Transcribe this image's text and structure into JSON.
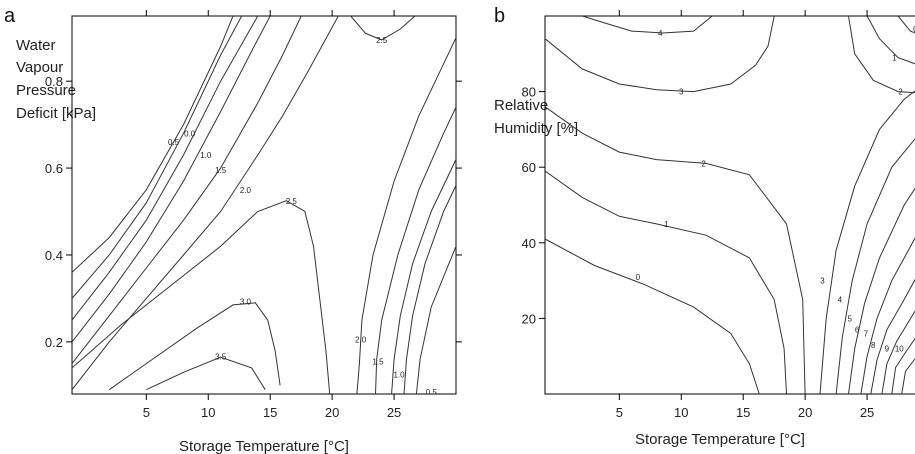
{
  "chart_data": [
    {
      "type": "contour",
      "panel": "a",
      "xlabel": "Storage Temperature [°C]",
      "ylabel_lines": [
        "Water",
        "Vapour",
        "Pressure",
        "Deficit [kPa]"
      ],
      "xlim": [
        -1,
        30
      ],
      "ylim": [
        0.08,
        0.95
      ],
      "xticks": [
        5,
        10,
        15,
        20,
        25
      ],
      "yticks": [
        0.2,
        0.4,
        0.6,
        0.8
      ],
      "ytick_labels": [
        "0.2",
        "0.4",
        "0.6",
        "0.8"
      ],
      "contours": [
        {
          "level": "0.5",
          "points": [
            [
              -1,
              0.36
            ],
            [
              2,
              0.44
            ],
            [
              5,
              0.55
            ],
            [
              8,
              0.7
            ],
            [
              11,
              0.88
            ],
            [
              12,
              0.95
            ]
          ],
          "label_at": [
            7.2,
            0.66
          ]
        },
        {
          "level": "0.0",
          "points": [
            [
              -1,
              0.3
            ],
            [
              2,
              0.4
            ],
            [
              5,
              0.52
            ],
            [
              8,
              0.68
            ],
            [
              11,
              0.86
            ],
            [
              12.7,
              0.95
            ]
          ],
          "label_at": [
            8.5,
            0.68
          ]
        },
        {
          "level": "1.0",
          "points": [
            [
              -1,
              0.25
            ],
            [
              2,
              0.36
            ],
            [
              5,
              0.48
            ],
            [
              8,
              0.63
            ],
            [
              11,
              0.8
            ],
            [
              14,
              0.95
            ]
          ],
          "label_at": [
            9.8,
            0.63
          ]
        },
        {
          "level": "1.5",
          "points": [
            [
              -1,
              0.2
            ],
            [
              2,
              0.31
            ],
            [
              5,
              0.43
            ],
            [
              8,
              0.57
            ],
            [
              11,
              0.73
            ],
            [
              13.7,
              0.88
            ],
            [
              15,
              0.95
            ]
          ],
          "label_at": [
            11,
            0.595
          ]
        },
        {
          "level": "2.0",
          "points": [
            [
              -1,
              0.15
            ],
            [
              2,
              0.26
            ],
            [
              5,
              0.37
            ],
            [
              8,
              0.48
            ],
            [
              11,
              0.6
            ],
            [
              14,
              0.75
            ],
            [
              16,
              0.86
            ],
            [
              17.5,
              0.95
            ]
          ],
          "label_at": [
            13,
            0.55
          ]
        },
        {
          "level": "",
          "points": [
            [
              -1,
              0.09
            ],
            [
              2,
              0.2
            ],
            [
              5,
              0.3
            ],
            [
              8,
              0.4
            ],
            [
              11,
              0.5
            ],
            [
              14,
              0.63
            ],
            [
              16,
              0.72
            ],
            [
              18,
              0.82
            ],
            [
              20.5,
              0.95
            ]
          ]
        },
        {
          "level": "2.5",
          "points": [
            [
              -1,
              0.14
            ],
            [
              3,
              0.24
            ],
            [
              7,
              0.33
            ],
            [
              11,
              0.42
            ],
            [
              14,
              0.5
            ],
            [
              16.3,
              0.525
            ],
            [
              17.8,
              0.5
            ],
            [
              18.5,
              0.42
            ],
            [
              19,
              0.3
            ],
            [
              19.5,
              0.18
            ],
            [
              19.8,
              0.08
            ]
          ],
          "label_at": [
            16.7,
            0.524
          ]
        },
        {
          "level": "3.0",
          "points": [
            [
              2,
              0.09
            ],
            [
              5,
              0.15
            ],
            [
              9,
              0.23
            ],
            [
              12,
              0.285
            ],
            [
              13.8,
              0.29
            ],
            [
              14.8,
              0.25
            ],
            [
              15.4,
              0.18
            ],
            [
              15.8,
              0.1
            ]
          ],
          "label_at": [
            13,
            0.293
          ]
        },
        {
          "level": "3.5",
          "points": [
            [
              5,
              0.09
            ],
            [
              8,
              0.13
            ],
            [
              11,
              0.165
            ],
            [
              13.5,
              0.14
            ],
            [
              14.6,
              0.09
            ]
          ],
          "label_at": [
            11,
            0.166
          ]
        },
        {
          "level": "2.5",
          "points": [
            [
              21.5,
              0.95
            ],
            [
              22.7,
              0.91
            ],
            [
              24,
              0.895
            ],
            [
              25.5,
              0.92
            ],
            [
              26.7,
              0.95
            ]
          ],
          "label_at": [
            24,
            0.895
          ]
        },
        {
          "level": "2.0",
          "points": [
            [
              22,
              0.08
            ],
            [
              22.2,
              0.15
            ],
            [
              22.4,
              0.25
            ],
            [
              23.3,
              0.4
            ],
            [
              25,
              0.57
            ],
            [
              27,
              0.72
            ],
            [
              29,
              0.84
            ],
            [
              30,
              0.9
            ]
          ],
          "label_at": [
            22.3,
            0.205
          ]
        },
        {
          "level": "1.5",
          "points": [
            [
              23.5,
              0.08
            ],
            [
              23.6,
              0.16
            ],
            [
              24,
              0.25
            ],
            [
              25.3,
              0.4
            ],
            [
              27,
              0.55
            ],
            [
              29,
              0.68
            ],
            [
              30,
              0.74
            ]
          ],
          "label_at": [
            23.7,
            0.155
          ]
        },
        {
          "level": "1.0",
          "points": [
            [
              24.8,
              0.08
            ],
            [
              25,
              0.16
            ],
            [
              25.5,
              0.26
            ],
            [
              26.5,
              0.38
            ],
            [
              28,
              0.5
            ],
            [
              30,
              0.62
            ]
          ],
          "label_at": [
            25.4,
            0.125
          ]
        },
        {
          "level": "0.5",
          "points": [
            [
              26.8,
              0.08
            ],
            [
              27.1,
              0.16
            ],
            [
              28,
              0.28
            ],
            [
              30,
              0.42
            ]
          ],
          "label_at": [
            28,
            0.085
          ]
        },
        {
          "level": "0.0",
          "points": [
            [
              25.8,
              0.08
            ],
            [
              26,
              0.16
            ],
            [
              26.5,
              0.26
            ],
            [
              27.5,
              0.38
            ],
            [
              29,
              0.5
            ],
            [
              30,
              0.56
            ]
          ],
          "label_at": [
            26.8,
            0.065
          ]
        }
      ]
    },
    {
      "type": "contour",
      "panel": "b",
      "xlabel": "Storage Temperature [°C]",
      "ylabel_lines": [
        "Relative",
        "Humidity [%]"
      ],
      "xlim": [
        -1,
        30
      ],
      "ylim": [
        0,
        100
      ],
      "xticks": [
        5,
        10,
        15,
        20,
        25
      ],
      "yticks": [
        20,
        40,
        60,
        80
      ],
      "ytick_labels": [
        "20",
        "40",
        "60",
        "80"
      ],
      "contours": [
        {
          "level": "0",
          "points": [
            [
              -1,
              41
            ],
            [
              3,
              34
            ],
            [
              7,
              29
            ],
            [
              11,
              23
            ],
            [
              14,
              16
            ],
            [
              15.5,
              8
            ],
            [
              16.3,
              0
            ]
          ],
          "label_at": [
            6.5,
            31
          ]
        },
        {
          "level": "1",
          "points": [
            [
              -1,
              59
            ],
            [
              2,
              52
            ],
            [
              5,
              47
            ],
            [
              8,
              45
            ],
            [
              12,
              42
            ],
            [
              15.5,
              36
            ],
            [
              17.5,
              25
            ],
            [
              18.3,
              12
            ],
            [
              18.5,
              0
            ]
          ],
          "label_at": [
            8.8,
            45
          ]
        },
        {
          "level": "2",
          "points": [
            [
              -1,
              76
            ],
            [
              2,
              69
            ],
            [
              5,
              64
            ],
            [
              8,
              62
            ],
            [
              12,
              61
            ],
            [
              15.5,
              58
            ],
            [
              18.5,
              45
            ],
            [
              19.8,
              25
            ],
            [
              20,
              0
            ]
          ],
          "label_at": [
            11.8,
            61
          ]
        },
        {
          "level": "3",
          "points": [
            [
              -1,
              94
            ],
            [
              2,
              86
            ],
            [
              5,
              82
            ],
            [
              8,
              80.5
            ],
            [
              11,
              80
            ],
            [
              14,
              82
            ],
            [
              16,
              87
            ],
            [
              17,
              92
            ],
            [
              17.5,
              100
            ]
          ],
          "label_at": [
            10,
            80
          ]
        },
        {
          "level": "4",
          "points": [
            [
              2,
              100
            ],
            [
              4,
              98
            ],
            [
              6,
              96
            ],
            [
              8.5,
              95.5
            ],
            [
              11,
              96
            ],
            [
              12.5,
              100
            ]
          ],
          "label_at": [
            8.3,
            95.5
          ]
        },
        {
          "level": "3",
          "points": [
            [
              21.2,
              0
            ],
            [
              21.7,
              20
            ],
            [
              22.5,
              38
            ],
            [
              24,
              55
            ],
            [
              26,
              70
            ],
            [
              28,
              78
            ],
            [
              30,
              83
            ]
          ],
          "label_at": [
            21.4,
            30
          ]
        },
        {
          "level": "4",
          "points": [
            [
              22.5,
              0
            ],
            [
              23,
              15
            ],
            [
              23.8,
              30
            ],
            [
              25,
              45
            ],
            [
              27,
              60
            ],
            [
              30,
              72
            ]
          ],
          "label_at": [
            22.8,
            25
          ]
        },
        {
          "level": "5",
          "points": [
            [
              23.5,
              0
            ],
            [
              24,
              12
            ],
            [
              24.8,
              24
            ],
            [
              26,
              36
            ],
            [
              28,
              50
            ],
            [
              30,
              60
            ]
          ],
          "label_at": [
            23.6,
            20
          ]
        },
        {
          "level": "6",
          "points": [
            [
              24.5,
              0
            ],
            [
              25,
              10
            ],
            [
              25.8,
              20
            ],
            [
              27,
              30
            ],
            [
              30,
              48
            ]
          ],
          "label_at": [
            24.2,
            17
          ]
        },
        {
          "level": "7",
          "points": [
            [
              25.3,
              0
            ],
            [
              25.8,
              9
            ],
            [
              26.6,
              17
            ],
            [
              28,
              25
            ],
            [
              30,
              37
            ]
          ],
          "label_at": [
            24.9,
            16
          ]
        },
        {
          "level": "8",
          "points": [
            [
              26.2,
              0
            ],
            [
              26.6,
              8
            ],
            [
              27.4,
              14
            ],
            [
              30,
              28
            ]
          ],
          "label_at": [
            25.5,
            13
          ]
        },
        {
          "level": "9",
          "points": [
            [
              27,
              0
            ],
            [
              27.3,
              7
            ],
            [
              28.1,
              11
            ],
            [
              30,
              20
            ]
          ],
          "label_at": [
            26.6,
            12
          ]
        },
        {
          "level": "10",
          "points": [
            [
              27.8,
              0
            ],
            [
              28.1,
              6
            ],
            [
              28.8,
              9
            ],
            [
              30,
              14
            ]
          ],
          "label_at": [
            27.6,
            12
          ]
        },
        {
          "level": "0",
          "points": [
            [
              27.5,
              100
            ],
            [
              28.5,
              96
            ],
            [
              30,
              94
            ]
          ],
          "label_at": [
            28.9,
            96.5
          ]
        },
        {
          "level": "1",
          "points": [
            [
              25,
              100
            ],
            [
              26,
              94
            ],
            [
              27.5,
              89
            ],
            [
              30,
              86
            ]
          ],
          "label_at": [
            27.2,
            89
          ]
        },
        {
          "level": "2",
          "points": [
            [
              23.5,
              100
            ],
            [
              24,
              90
            ],
            [
              25.5,
              83
            ],
            [
              27.5,
              80
            ],
            [
              30,
              79.5
            ]
          ],
          "label_at": [
            27.7,
            80
          ]
        }
      ]
    }
  ]
}
